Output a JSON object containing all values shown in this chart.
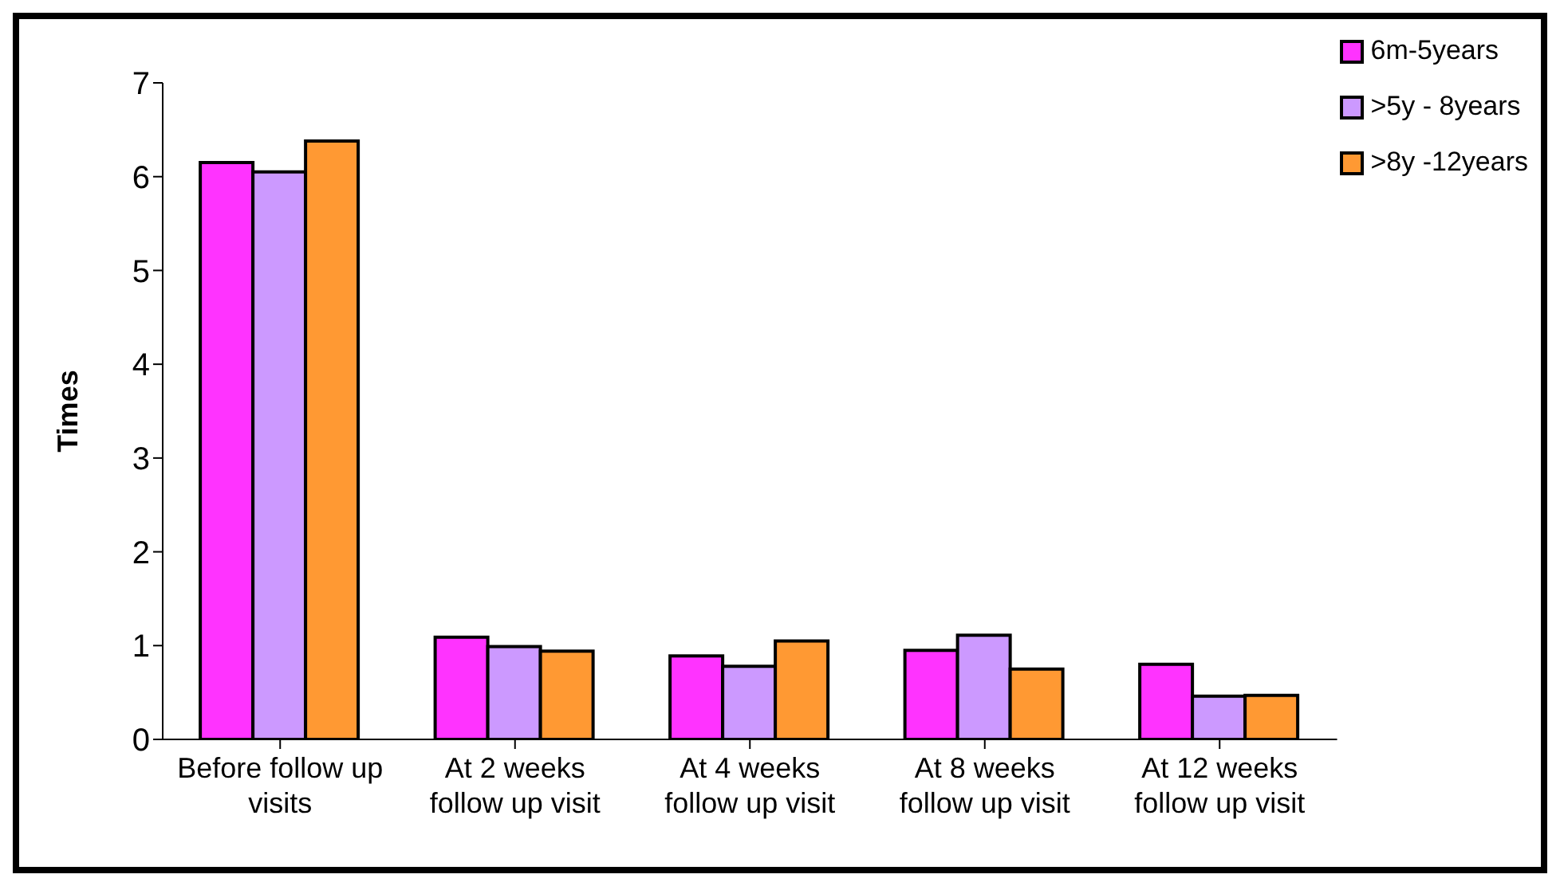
{
  "chart_data": {
    "type": "bar",
    "ylabel": "Times",
    "categories": [
      "Before follow up visits",
      "At 2 weeks follow up visit",
      "At 4 weeks follow up visit",
      "At 8 weeks follow up visit",
      "At 12 weeks follow up visit"
    ],
    "series": [
      {
        "name": "6m-5years",
        "color": "#ff33ff",
        "values": [
          6.15,
          1.09,
          0.89,
          0.95,
          0.8
        ]
      },
      {
        "name": ">5y  - 8years",
        "color": "#cc99ff",
        "values": [
          6.05,
          0.99,
          0.78,
          1.11,
          0.46
        ]
      },
      {
        "name": ">8y -12years",
        "color": "#ff9933",
        "values": [
          6.38,
          0.94,
          1.05,
          0.75,
          0.47
        ]
      }
    ],
    "ylim": [
      0,
      7
    ],
    "yticks": [
      0,
      1,
      2,
      3,
      4,
      5,
      6,
      7
    ],
    "grid": false,
    "legend": "top right"
  }
}
